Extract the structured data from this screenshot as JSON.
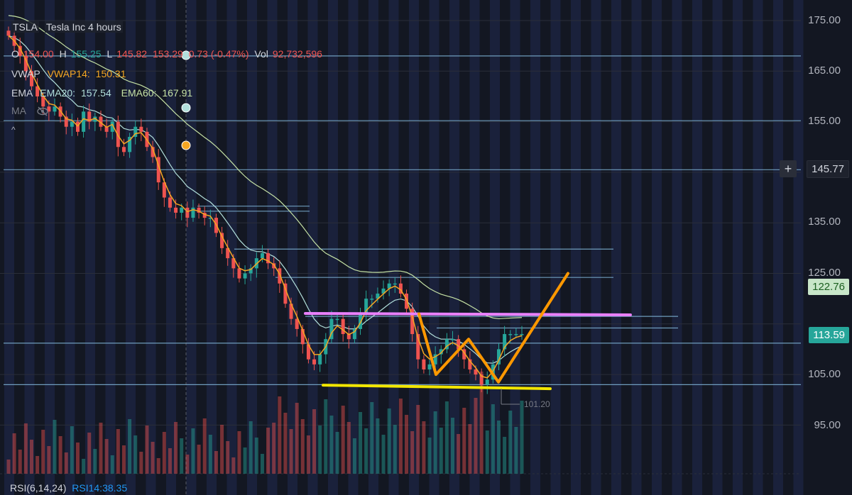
{
  "legend": {
    "symbol": "TSLA",
    "title": "Tesla Inc 4 hours",
    "ohlc": {
      "o_label": "O",
      "o": "154.00",
      "h_label": "H",
      "h": "155.25",
      "l_label": "L",
      "l": "145.82",
      "c": "153.29",
      "change": "0.73 (-0.47%)",
      "vol_label": "Vol",
      "vol": "92,732,596"
    },
    "vwap": {
      "label": "VWAP",
      "name": "VWAP14:",
      "value": "150.31"
    },
    "ema": {
      "label": "EMA",
      "name20": "EMA20:",
      "value20": "157.54",
      "name60": "EMA60:",
      "value60": "167.91"
    },
    "ma": {
      "label": "MA"
    },
    "collapse": "^"
  },
  "price_axis": {
    "labels": [
      "175.00",
      "165.00",
      "155.00",
      "145.77",
      "135.00",
      "125.00",
      "113.59",
      "105.00",
      "95.00"
    ],
    "current_price": "113.59",
    "ema_price": "122.76",
    "crosshair_price": "145.77",
    "plus": "+"
  },
  "low_marker": "101.20",
  "rsi": {
    "label": "RSI(6,14,24)",
    "name": "RSI14:",
    "value": "38.35"
  },
  "colors": {
    "background": "#131722",
    "up": "#26a69a",
    "down": "#ef5350",
    "vwap": "#f5a623",
    "ema20": "#b2dfdb",
    "ema60": "#c5e1a5",
    "support": "#f2e600",
    "resistance": "#ea80fc",
    "drawing": "#ff9800"
  },
  "chart_data": {
    "type": "candlestick",
    "title": "Tesla Inc 4 hours",
    "ylim": [
      92,
      178
    ],
    "close": [
      172,
      170,
      168,
      165,
      162,
      160,
      158,
      157,
      158,
      156,
      154,
      155,
      153,
      157,
      155,
      156,
      154,
      153,
      155,
      150,
      149,
      152,
      154,
      153,
      150,
      148,
      143,
      140,
      138,
      137,
      138,
      136,
      138,
      137,
      136,
      136,
      133,
      130,
      128,
      126,
      124,
      125,
      126,
      128,
      129,
      127,
      126,
      123,
      119,
      116,
      114,
      111,
      108,
      107,
      109,
      112,
      116,
      116,
      113,
      112,
      114,
      117,
      120,
      120,
      121,
      122,
      123,
      123,
      121,
      118,
      113,
      108,
      106,
      107,
      109,
      110,
      112,
      112,
      110,
      108,
      106,
      105,
      103,
      104,
      107,
      110,
      113,
      113,
      113,
      113
    ],
    "horizontal_levels": [
      168,
      155.2,
      145.5,
      138.3,
      137.3,
      129.8,
      124.2,
      116.5,
      114.2,
      111.2,
      103
    ],
    "drawings": {
      "support_level": 102.2,
      "resistance_level": 116.8,
      "w_pattern": [
        [
          117,
          0
        ],
        [
          105,
          0
        ],
        [
          112,
          0
        ],
        [
          103.5,
          0
        ],
        [
          125,
          0
        ]
      ]
    }
  }
}
